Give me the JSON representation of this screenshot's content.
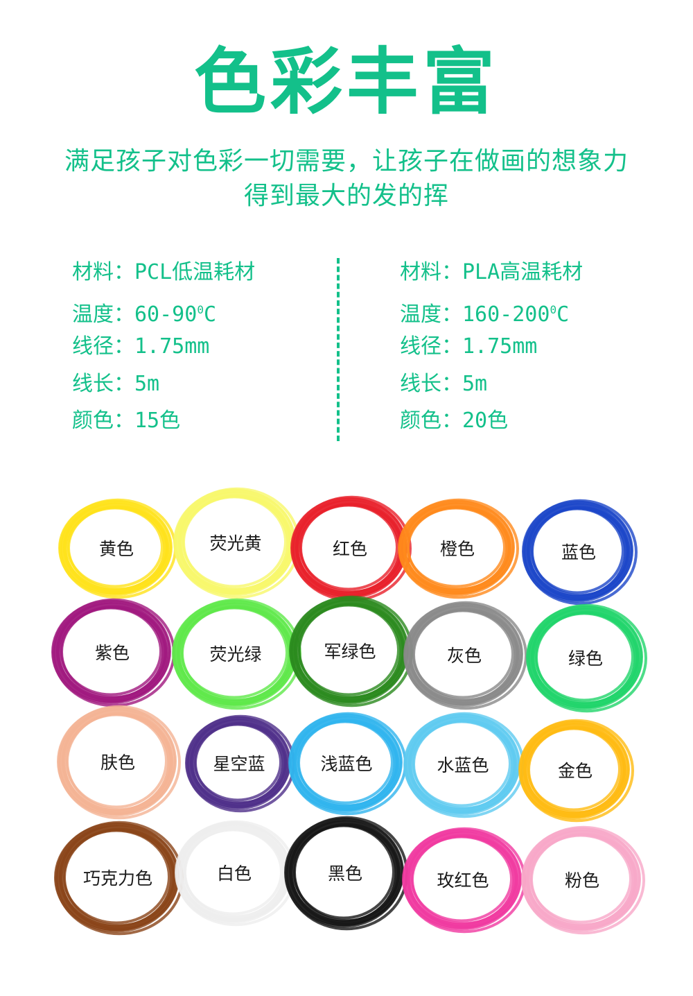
{
  "title": "色彩丰富",
  "subtitle_lines": [
    "满足孩子对色彩一切需要，让孩子在做画的想象力",
    "得到最大的发的挥"
  ],
  "specs_left": [
    {
      "label": "材料：",
      "value": "PCL低温耗材"
    },
    {
      "label": "温度：",
      "value": "60-90",
      "sup": "0",
      "unit": "C"
    },
    {
      "label": "线径：",
      "value": "1.75mm"
    },
    {
      "label": "线长：",
      "value": "5m"
    },
    {
      "label": "颜色：",
      "value": "15色"
    }
  ],
  "specs_right": [
    {
      "label": "材料：",
      "value": "PLA高温耗材"
    },
    {
      "label": "温度：",
      "value": "160-200",
      "sup": "0",
      "unit": "C"
    },
    {
      "label": "线径：",
      "value": "1.75mm"
    },
    {
      "label": "线长：",
      "value": "5m"
    },
    {
      "label": "颜色：",
      "value": "20色"
    }
  ],
  "colors": {
    "accent": "#13c08a",
    "text": "#1a1a1a"
  },
  "swatches": [
    {
      "label": "黄色",
      "color": "#ffe21a"
    },
    {
      "label": "荧光黄",
      "color": "#f8f86a"
    },
    {
      "label": "红色",
      "color": "#e8202a"
    },
    {
      "label": "橙色",
      "color": "#ff8a1c"
    },
    {
      "label": "蓝色",
      "color": "#1b46c8"
    },
    {
      "label": "紫色",
      "color": "#a0187e"
    },
    {
      "label": "荧光绿",
      "color": "#5fe84a"
    },
    {
      "label": "军绿色",
      "color": "#2b8a1e"
    },
    {
      "label": "灰色",
      "color": "#8a8a8a"
    },
    {
      "label": "绿色",
      "color": "#20d46a"
    },
    {
      "label": "肤色",
      "color": "#f4b394"
    },
    {
      "label": "星空蓝",
      "color": "#4f2f8a"
    },
    {
      "label": "浅蓝色",
      "color": "#2fb4ee"
    },
    {
      "label": "水蓝色",
      "color": "#5fcaf0"
    },
    {
      "label": "金色",
      "color": "#ffbb12"
    },
    {
      "label": "巧克力色",
      "color": "#8a4418"
    },
    {
      "label": "白色",
      "color": "#eeeeee"
    },
    {
      "label": "黑色",
      "color": "#161616"
    },
    {
      "label": "玫红色",
      "color": "#f03aa0"
    },
    {
      "label": "粉色",
      "color": "#f8a8c8"
    }
  ]
}
